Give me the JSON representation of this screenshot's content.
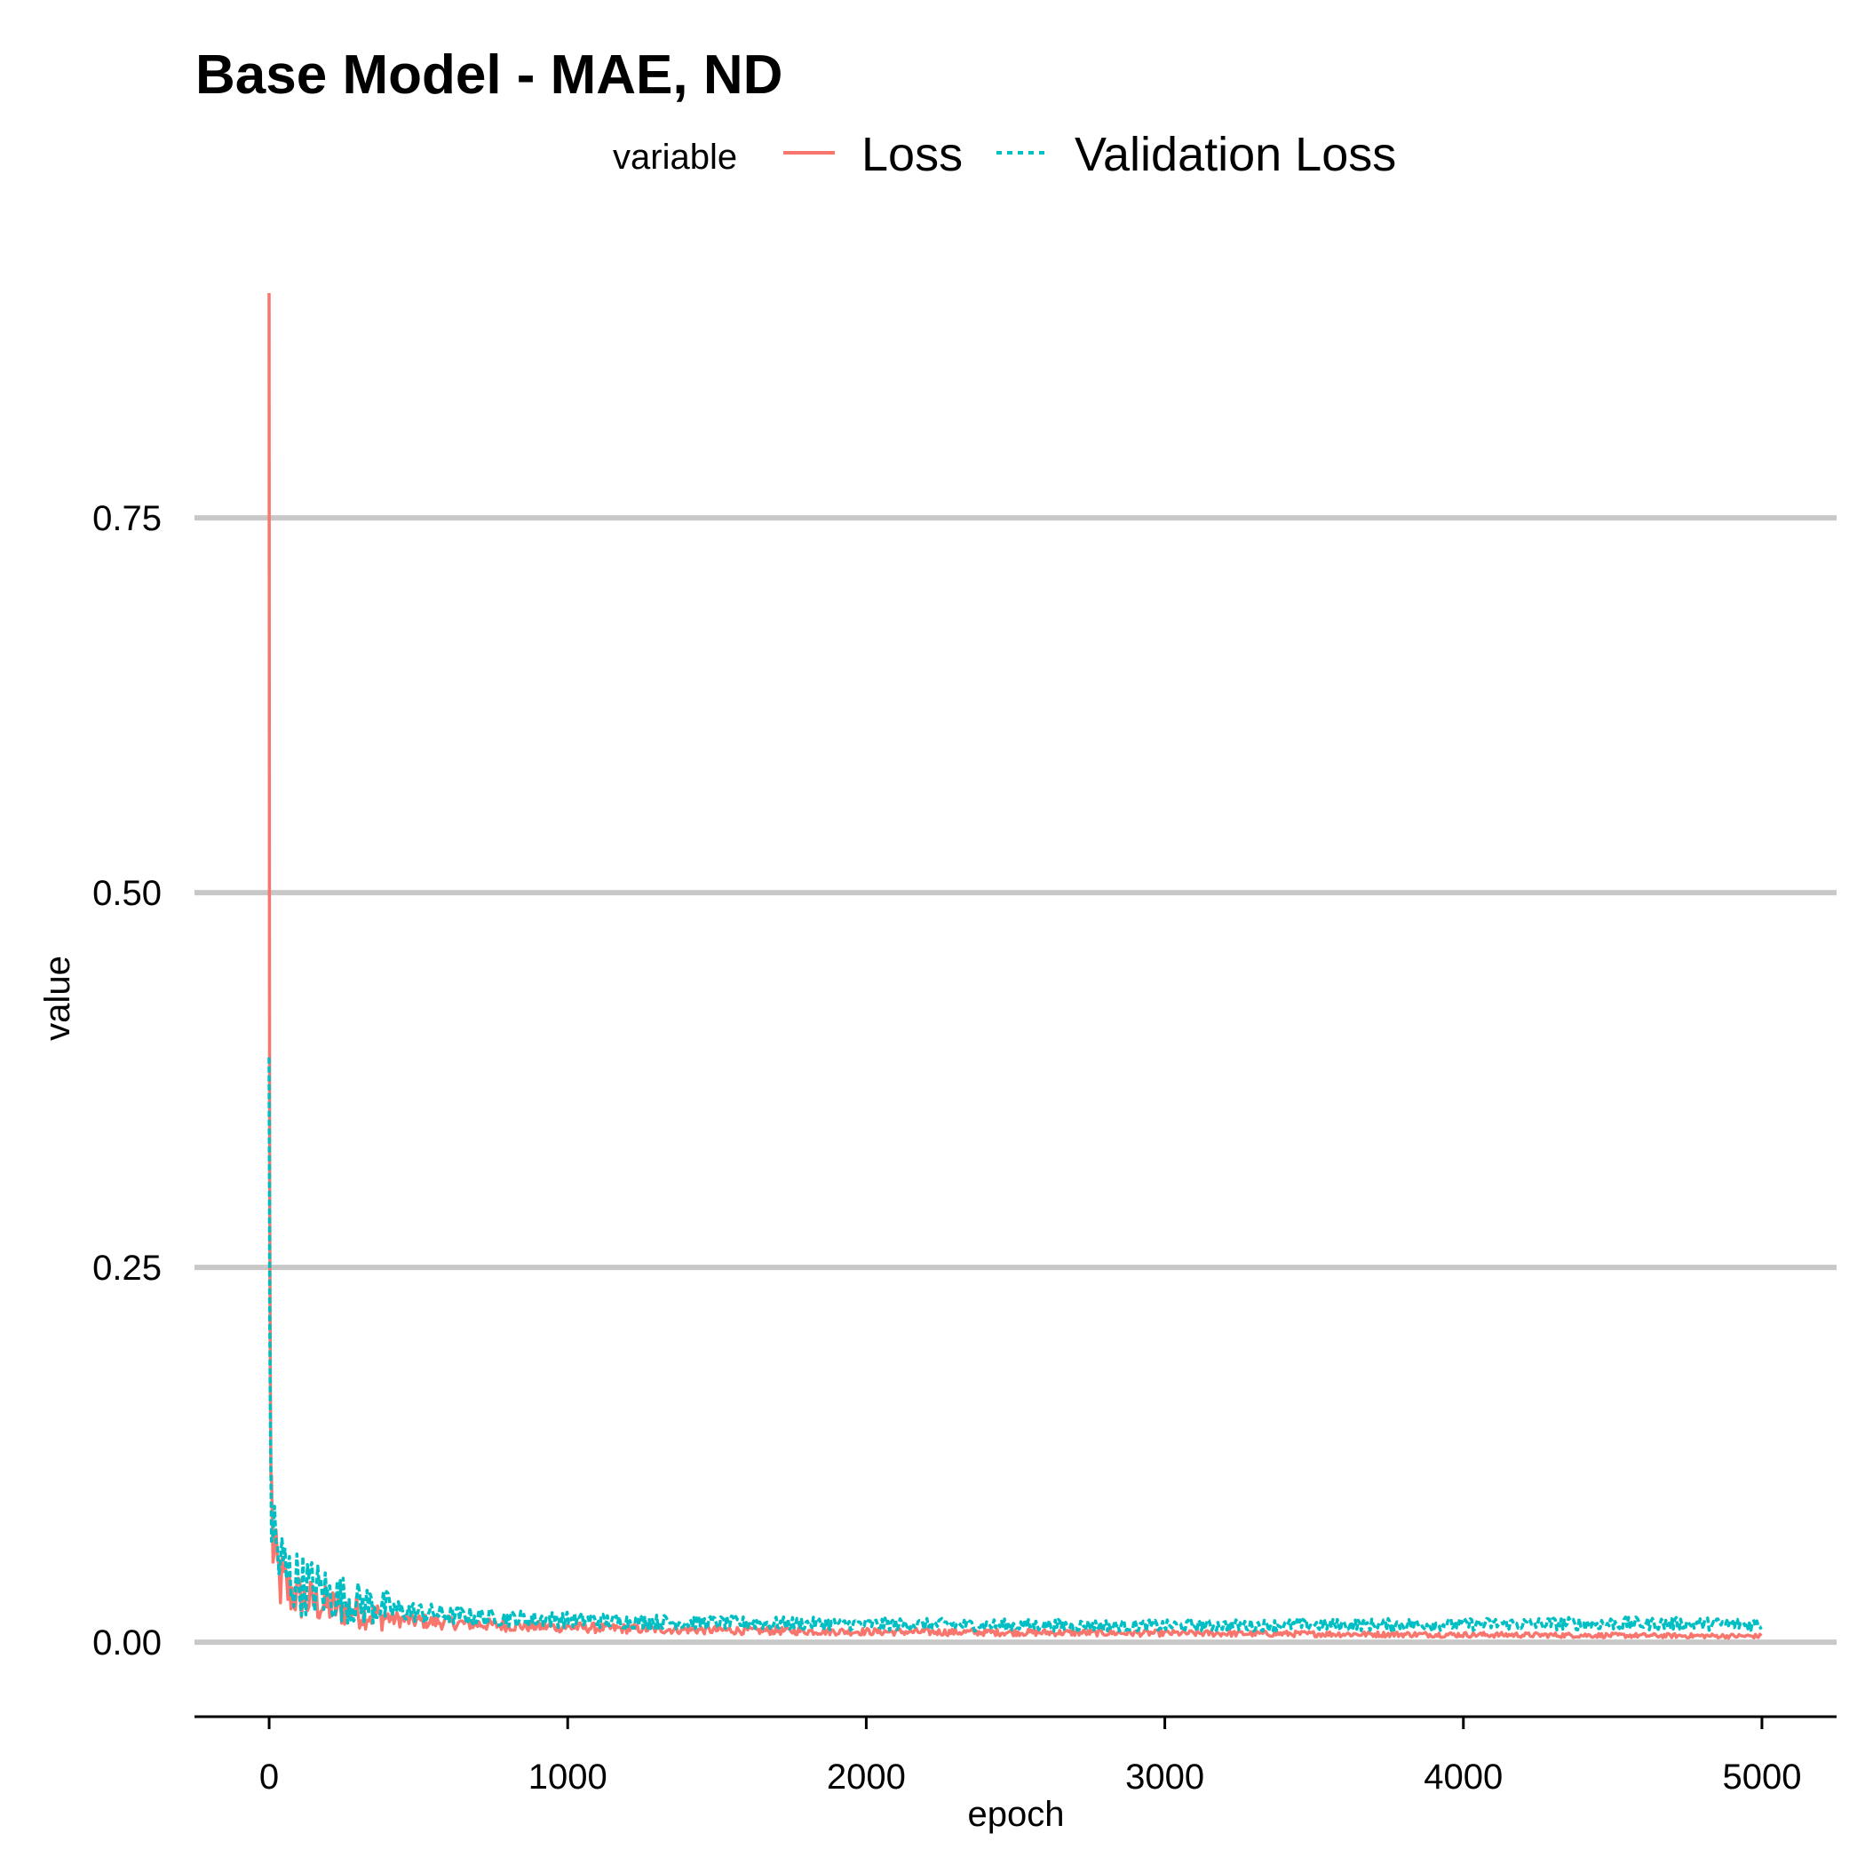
{
  "chart_data": {
    "type": "line",
    "title": "Base Model - MAE, ND",
    "xlabel": "epoch",
    "ylabel": "value",
    "xlim": [
      -250,
      5250
    ],
    "ylim": [
      -0.042,
      0.9
    ],
    "x_ticks": [
      0,
      1000,
      2000,
      3000,
      4000,
      5000
    ],
    "x_tick_labels": [
      "0",
      "1000",
      "2000",
      "3000",
      "4000",
      "5000"
    ],
    "y_ticks": [
      0.0,
      0.25,
      0.5,
      0.75
    ],
    "y_tick_labels": [
      "0.00",
      "0.25",
      "0.50",
      "0.75"
    ],
    "grid": "horizontal major",
    "legend": {
      "title": "variable",
      "position": "top",
      "entries": [
        {
          "label": "Loss",
          "color": "#F8766D",
          "linetype": "solid"
        },
        {
          "label": "Validation Loss",
          "color": "#00BFC4",
          "linetype": "dotted"
        }
      ]
    },
    "series": [
      {
        "name": "Loss",
        "color": "#F8766D",
        "linetype": "solid",
        "x": [
          0,
          1,
          2,
          4,
          6,
          10,
          15,
          20,
          30,
          40,
          50,
          60,
          80,
          100,
          120,
          150,
          180,
          200,
          220,
          250,
          280,
          300,
          350,
          400,
          500,
          600,
          700,
          800,
          1000,
          1200,
          1500,
          2000,
          2500,
          3000,
          3500,
          4000,
          4500,
          5000
        ],
        "y": [
          0.9,
          0.45,
          0.3,
          0.18,
          0.11,
          0.08,
          0.06,
          0.05,
          0.045,
          0.04,
          0.038,
          0.035,
          0.033,
          0.03,
          0.028,
          0.027,
          0.025,
          0.024,
          0.023,
          0.022,
          0.021,
          0.02,
          0.018,
          0.016,
          0.014,
          0.013,
          0.012,
          0.011,
          0.01,
          0.009,
          0.008,
          0.007,
          0.0065,
          0.006,
          0.0055,
          0.005,
          0.0045,
          0.004
        ]
      },
      {
        "name": "Validation Loss",
        "color": "#00BFC4",
        "linetype": "dotted",
        "x": [
          0,
          1,
          2,
          4,
          6,
          10,
          15,
          20,
          30,
          40,
          50,
          60,
          80,
          100,
          120,
          150,
          180,
          200,
          220,
          250,
          280,
          300,
          350,
          400,
          500,
          600,
          700,
          800,
          1000,
          1200,
          1500,
          2000,
          2500,
          3000,
          3500,
          4000,
          4500,
          5000
        ],
        "y": [
          0.39,
          0.3,
          0.22,
          0.15,
          0.11,
          0.09,
          0.075,
          0.065,
          0.058,
          0.052,
          0.048,
          0.045,
          0.042,
          0.04,
          0.038,
          0.036,
          0.034,
          0.032,
          0.03,
          0.029,
          0.027,
          0.026,
          0.024,
          0.022,
          0.02,
          0.018,
          0.017,
          0.016,
          0.015,
          0.014,
          0.013,
          0.012,
          0.0115,
          0.011,
          0.0115,
          0.012,
          0.0125,
          0.012
        ]
      }
    ]
  }
}
